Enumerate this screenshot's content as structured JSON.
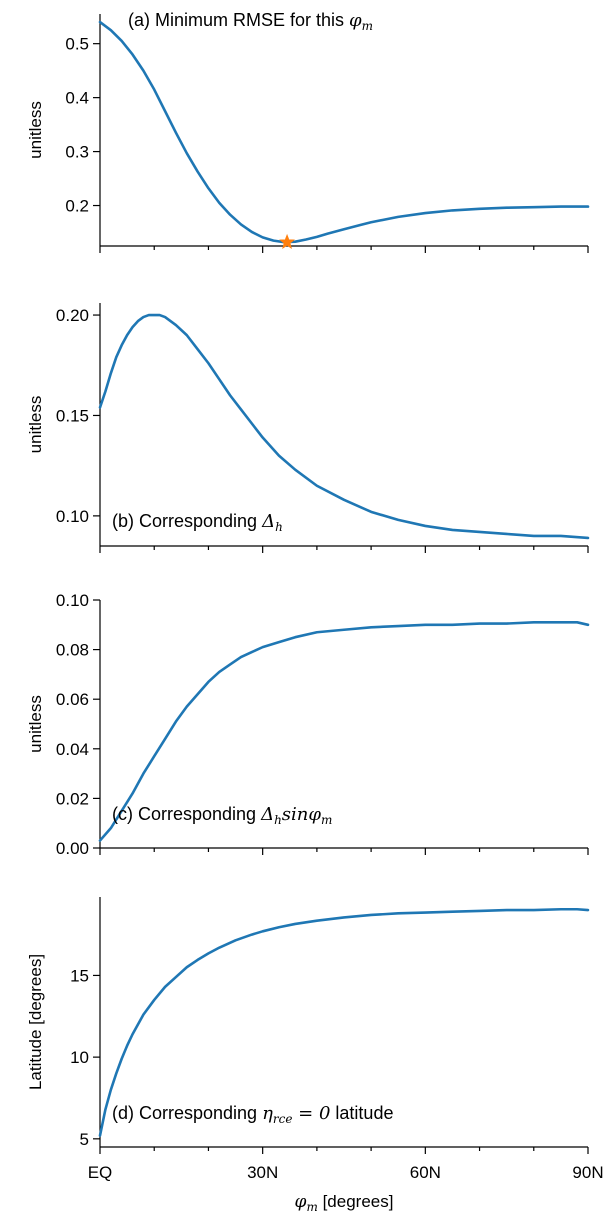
{
  "colors": {
    "line": "#1f77b4",
    "marker": "#ff7f0e",
    "axis": "#000000"
  },
  "x_axis": {
    "label": "φm [degrees]",
    "label_var": "φ",
    "label_sub": "m",
    "label_rest": " [degrees]",
    "ticks": [
      {
        "value": 0,
        "label": "EQ"
      },
      {
        "value": 30,
        "label": "30N"
      },
      {
        "value": 60,
        "label": "60N"
      },
      {
        "value": 90,
        "label": "90N"
      }
    ],
    "minor_ticks": [
      10,
      20,
      40,
      50,
      70,
      80
    ]
  },
  "chart_data": [
    {
      "type": "line",
      "panel": "a",
      "title": "(a) Minimum RMSE for this φm",
      "title_parts": {
        "prefix": "(a) Minimum RMSE for this ",
        "var": "φ",
        "sub": "m",
        "suffix": ""
      },
      "ylabel": "unitless",
      "xlim": [
        0,
        90
      ],
      "ylim": [
        0.125,
        0.555
      ],
      "yticks": [
        0.2,
        0.3,
        0.4,
        0.5
      ],
      "ytick_labels": [
        "0.2",
        "0.3",
        "0.4",
        "0.5"
      ],
      "marker": {
        "symbol": "star",
        "x": 34.5,
        "y": 0.132
      },
      "series": [
        {
          "x": [
            0,
            2,
            4,
            6,
            8,
            10,
            12,
            14,
            16,
            18,
            20,
            22,
            24,
            26,
            28,
            30,
            32,
            34,
            36,
            38,
            40,
            42,
            45,
            48,
            50,
            55,
            60,
            65,
            70,
            75,
            80,
            85,
            90
          ],
          "y": [
            0.54,
            0.525,
            0.505,
            0.48,
            0.45,
            0.415,
            0.375,
            0.335,
            0.297,
            0.263,
            0.232,
            0.205,
            0.183,
            0.165,
            0.151,
            0.141,
            0.135,
            0.132,
            0.133,
            0.137,
            0.142,
            0.148,
            0.156,
            0.164,
            0.169,
            0.179,
            0.186,
            0.191,
            0.194,
            0.196,
            0.197,
            0.198,
            0.198
          ]
        }
      ]
    },
    {
      "type": "line",
      "panel": "b",
      "title": "(b) Corresponding Δh",
      "title_parts": {
        "prefix": "(b) Corresponding ",
        "var": "Δ",
        "sub": "h",
        "suffix": ""
      },
      "ylabel": "unitless",
      "xlim": [
        0,
        90
      ],
      "ylim": [
        0.085,
        0.206
      ],
      "yticks": [
        0.1,
        0.15,
        0.2
      ],
      "ytick_labels": [
        "0.10",
        "0.15",
        "0.20"
      ],
      "series": [
        {
          "x": [
            0,
            1,
            2,
            3,
            4,
            5,
            6,
            7,
            8,
            9,
            10,
            11,
            12,
            13,
            14,
            16,
            18,
            20,
            22,
            24,
            26,
            28,
            30,
            33,
            36,
            40,
            45,
            50,
            55,
            60,
            65,
            70,
            75,
            80,
            85,
            90
          ],
          "y": [
            0.154,
            0.162,
            0.171,
            0.179,
            0.185,
            0.19,
            0.194,
            0.197,
            0.199,
            0.2,
            0.2,
            0.2,
            0.199,
            0.197,
            0.195,
            0.19,
            0.183,
            0.176,
            0.168,
            0.16,
            0.153,
            0.146,
            0.139,
            0.13,
            0.123,
            0.115,
            0.108,
            0.102,
            0.098,
            0.095,
            0.093,
            0.092,
            0.091,
            0.09,
            0.09,
            0.089
          ]
        }
      ]
    },
    {
      "type": "line",
      "panel": "c",
      "title": "(c) Corresponding Δhsinφm",
      "title_parts": {
        "prefix": "(c) Corresponding ",
        "var": "Δ",
        "sub": "h",
        "suffix": "sin",
        "var2": "φ",
        "sub2": "m"
      },
      "ylabel": "unitless",
      "xlim": [
        0,
        90
      ],
      "ylim": [
        0,
        0.1
      ],
      "yticks": [
        0,
        0.02,
        0.04,
        0.06,
        0.08,
        0.1
      ],
      "ytick_labels": [
        "0.00",
        "0.02",
        "0.04",
        "0.06",
        "0.08",
        "0.10"
      ],
      "series": [
        {
          "x": [
            0,
            2,
            4,
            6,
            8,
            10,
            12,
            14,
            16,
            18,
            20,
            22,
            24,
            26,
            28,
            30,
            33,
            36,
            40,
            45,
            50,
            55,
            60,
            65,
            70,
            75,
            80,
            85,
            88,
            90
          ],
          "y": [
            0.003,
            0.008,
            0.015,
            0.022,
            0.03,
            0.037,
            0.044,
            0.051,
            0.057,
            0.062,
            0.067,
            0.071,
            0.074,
            0.077,
            0.079,
            0.081,
            0.083,
            0.085,
            0.087,
            0.088,
            0.089,
            0.0895,
            0.09,
            0.09,
            0.0905,
            0.0905,
            0.091,
            0.091,
            0.091,
            0.09
          ]
        }
      ]
    },
    {
      "type": "line",
      "panel": "d",
      "title": "(d) Corresponding ηrce = 0 latitude",
      "title_parts": {
        "prefix": "(d) Corresponding ",
        "var": "η",
        "sub": "rce",
        "suffix": " = 0",
        "post": " latitude"
      },
      "ylabel": "Latitude [degrees]",
      "xlim": [
        0,
        90
      ],
      "ylim": [
        4.5,
        19.8
      ],
      "yticks": [
        5,
        10,
        15
      ],
      "ytick_labels": [
        "5",
        "10",
        "15"
      ],
      "series": [
        {
          "x": [
            0,
            1,
            2,
            3,
            4,
            5,
            6,
            8,
            10,
            12,
            14,
            16,
            18,
            20,
            22,
            25,
            28,
            30,
            33,
            36,
            40,
            45,
            50,
            55,
            60,
            65,
            70,
            75,
            80,
            85,
            88,
            90
          ],
          "y": [
            5.2,
            6.8,
            8.0,
            9.0,
            9.9,
            10.7,
            11.4,
            12.6,
            13.5,
            14.3,
            14.9,
            15.5,
            15.95,
            16.35,
            16.7,
            17.15,
            17.5,
            17.7,
            17.95,
            18.15,
            18.35,
            18.55,
            18.7,
            18.8,
            18.85,
            18.9,
            18.95,
            19.0,
            19.0,
            19.05,
            19.05,
            19.0
          ]
        }
      ]
    }
  ]
}
